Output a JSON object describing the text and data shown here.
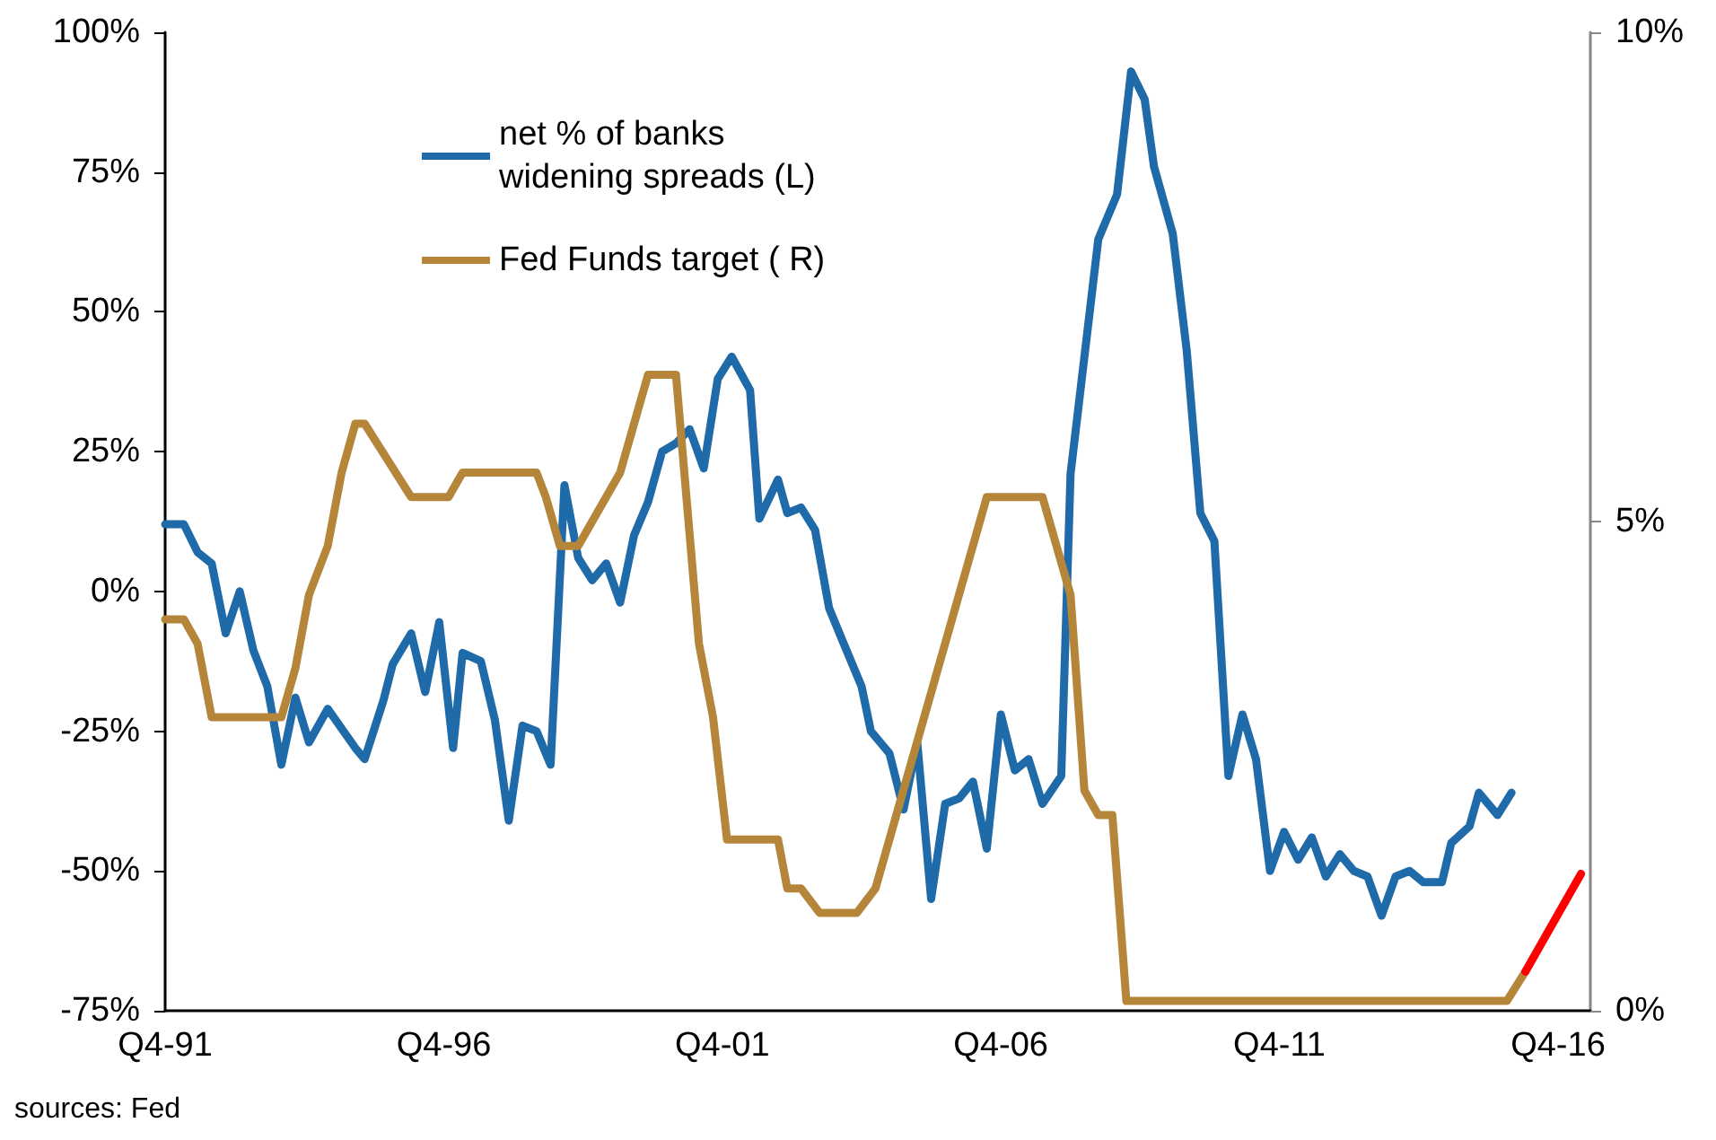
{
  "chart_data": {
    "type": "line",
    "xlim": [
      "1991-10",
      "2017-05"
    ],
    "xticks": [
      {
        "value": "1991-10",
        "label": "Q4-91"
      },
      {
        "value": "1996-10",
        "label": "Q4-96"
      },
      {
        "value": "2001-10",
        "label": "Q4-01"
      },
      {
        "value": "2006-10",
        "label": "Q4-06"
      },
      {
        "value": "2011-10",
        "label": "Q4-11"
      },
      {
        "value": "2016-10",
        "label": "Q4-16"
      }
    ],
    "ylim": [
      -75,
      100
    ],
    "yticks": [
      {
        "value": -75,
        "label": "-75%"
      },
      {
        "value": -50,
        "label": "-50%"
      },
      {
        "value": -25,
        "label": "-25%"
      },
      {
        "value": 0,
        "label": "0%"
      },
      {
        "value": 25,
        "label": "25%"
      },
      {
        "value": 50,
        "label": "50%"
      },
      {
        "value": 75,
        "label": "75%"
      },
      {
        "value": 100,
        "label": "100%"
      }
    ],
    "y2lim": [
      0,
      10
    ],
    "y2ticks": [
      {
        "value": 0,
        "label": "0%"
      },
      {
        "value": 5,
        "label": "5%"
      },
      {
        "value": 10,
        "label": "10%"
      }
    ],
    "grid": false,
    "legend": "top left",
    "marker": "none",
    "line_style": "solid",
    "annotations": [
      "sources: Fed"
    ],
    "series": [
      {
        "name": "net % of banks\nwidening spreads (L)",
        "color": "#1f6aa8",
        "x": [
          "1991-10",
          "1992-02",
          "1992-05",
          "1992-08",
          "1992-11",
          "1993-02",
          "1993-05",
          "1993-08",
          "1993-11",
          "1994-02",
          "1994-05",
          "1994-09",
          "1995-03",
          "1995-05",
          "1995-09",
          "1995-11",
          "1996-03",
          "1996-06",
          "1996-09",
          "1996-12",
          "1997-02",
          "1997-06",
          "1997-09",
          "1997-12",
          "1998-03",
          "1998-06",
          "1998-09",
          "1998-12",
          "1999-03",
          "1999-06",
          "1999-09",
          "1999-12",
          "2000-03",
          "2000-06",
          "2000-09",
          "2000-12",
          "2001-03",
          "2001-06",
          "2001-09",
          "2001-12",
          "2002-04",
          "2002-06",
          "2002-10",
          "2002-12",
          "2003-03",
          "2003-06",
          "2003-09",
          "2003-12",
          "2004-04",
          "2004-06",
          "2004-10",
          "2005-01",
          "2005-04",
          "2005-07",
          "2005-10",
          "2006-01",
          "2006-04",
          "2006-07",
          "2006-10",
          "2007-01",
          "2007-04",
          "2007-07",
          "2007-11",
          "2008-01",
          "2008-07",
          "2008-11",
          "2009-02",
          "2009-05",
          "2009-07",
          "2009-11",
          "2010-02",
          "2010-05",
          "2010-08",
          "2010-11",
          "2011-02",
          "2011-05",
          "2011-08",
          "2011-11",
          "2012-02",
          "2012-05",
          "2012-08",
          "2012-11",
          "2013-02",
          "2013-05",
          "2013-08",
          "2013-11",
          "2014-02",
          "2014-05",
          "2014-09",
          "2014-11",
          "2015-03",
          "2015-05",
          "2015-09",
          "2015-12"
        ],
        "values": [
          12,
          12,
          7,
          5,
          -7.5,
          0,
          -10.5,
          -17,
          -31,
          -19,
          -27,
          -21,
          -28,
          -30,
          -19.5,
          -13,
          -7.5,
          -18,
          -5.5,
          -28,
          -11,
          -12.5,
          -23,
          -41,
          -24,
          -25,
          -31,
          19,
          6,
          2,
          5,
          -2,
          10,
          16,
          25,
          26.5,
          29,
          22,
          38,
          42,
          36,
          13,
          20,
          14,
          15,
          11,
          -3,
          -9,
          -17,
          -25,
          -29,
          -39,
          -27,
          -55,
          -38,
          -37,
          -34,
          -46,
          -22,
          -32,
          -30,
          -38,
          -33,
          21,
          63,
          71,
          93,
          88,
          76,
          64,
          43,
          14,
          9,
          -33,
          -22,
          -30,
          -50,
          -43,
          -48,
          -44,
          -51,
          -47,
          -50,
          -51,
          -58,
          -51,
          -50,
          -52,
          -52,
          -45,
          -42,
          -36,
          -40,
          -36
        ]
      },
      {
        "name": "Fed Funds target ( R)",
        "color": "#b5863a",
        "axis": "y2",
        "x": [
          "1991-10",
          "1992-02",
          "1992-05",
          "1992-08",
          "1993-11",
          "1994-02",
          "1994-05",
          "1994-09",
          "1994-12",
          "1995-03",
          "1995-05",
          "1996-03",
          "1996-11",
          "1997-02",
          "1998-06",
          "1998-08",
          "1998-11",
          "1999-03",
          "1999-12",
          "2000-06",
          "2000-12",
          "2001-05",
          "2001-08",
          "2001-11",
          "2002-10",
          "2002-12",
          "2003-03",
          "2003-07",
          "2004-03",
          "2004-07",
          "2006-07",
          "2007-07",
          "2008-01",
          "2008-04",
          "2008-07",
          "2008-10",
          "2009-01",
          "2015-11",
          "2016-03"
        ],
        "values": [
          4,
          4,
          3.75,
          3,
          3,
          3.5,
          4.25,
          4.75,
          5.5,
          6,
          6,
          5.25,
          5.25,
          5.5,
          5.5,
          5.25,
          4.75,
          4.75,
          5.5,
          6.5,
          6.5,
          3.75,
          3,
          1.75,
          1.75,
          1.25,
          1.25,
          1,
          1,
          1.25,
          5.25,
          5.25,
          4.25,
          2.25,
          2,
          2,
          0.1,
          0.1,
          0.4
        ]
      },
      {
        "color": "#ff0000",
        "axis": "y2",
        "x": [
          "2016-03",
          "2017-03"
        ],
        "values": [
          0.4,
          1.4
        ]
      }
    ]
  }
}
